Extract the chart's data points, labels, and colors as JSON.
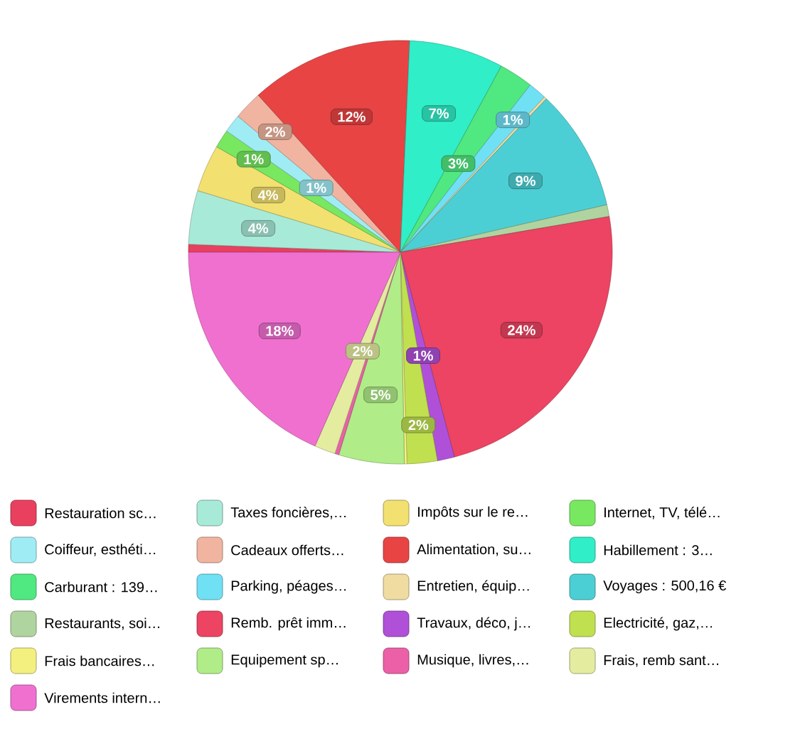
{
  "chart_data": {
    "type": "pie",
    "legend": "bottom",
    "categories": [
      "Restauration sc…",
      "Taxes foncières,…",
      "Impôts sur le re…",
      "Internet, TV, télé…",
      "Coiffeur, esthéti…",
      "Cadeaux offerts…",
      "Alimentation, su…",
      "Habillement : 3…",
      "Carburant : 139…",
      "Parking, péages…",
      "Entretien, équip…",
      "Voyages : 500,16 €",
      "Restaurants, soi…",
      "Remb. prêt imm…",
      "Travaux, déco, j…",
      "Electricité, gaz,…",
      "Frais bancaires…",
      "Equipement sp…",
      "Musique, livres,…",
      "Frais, remb sant…",
      "Virements intern…"
    ],
    "values": [
      0.6,
      4.1,
      3.6,
      1.4,
      1.4,
      2.2,
      12.4,
      7.2,
      2.6,
      1.4,
      0.2,
      9.3,
      0.9,
      23.6,
      1.3,
      2.3,
      0.2,
      5.0,
      0.3,
      1.6,
      18.4
    ],
    "value_labels": [
      null,
      "4%",
      "4%",
      "1%",
      "1%",
      "2%",
      "12%",
      "7%",
      "3%",
      "1%",
      null,
      "9%",
      null,
      "24%",
      "1%",
      "2%",
      null,
      "5%",
      null,
      "2%",
      "18%"
    ],
    "colors": [
      "#e8405e",
      "#a8ead8",
      "#f2e070",
      "#78e860",
      "#a0ecf4",
      "#f0b4a0",
      "#e84444",
      "#30eec8",
      "#50e880",
      "#70e0f4",
      "#f0dca0",
      "#4ccfd4",
      "#b0d4a0",
      "#ec4462",
      "#b050d8",
      "#c0e050",
      "#f4f080",
      "#b0ec88",
      "#ec60a8",
      "#e4eca0",
      "#f070d0"
    ]
  }
}
